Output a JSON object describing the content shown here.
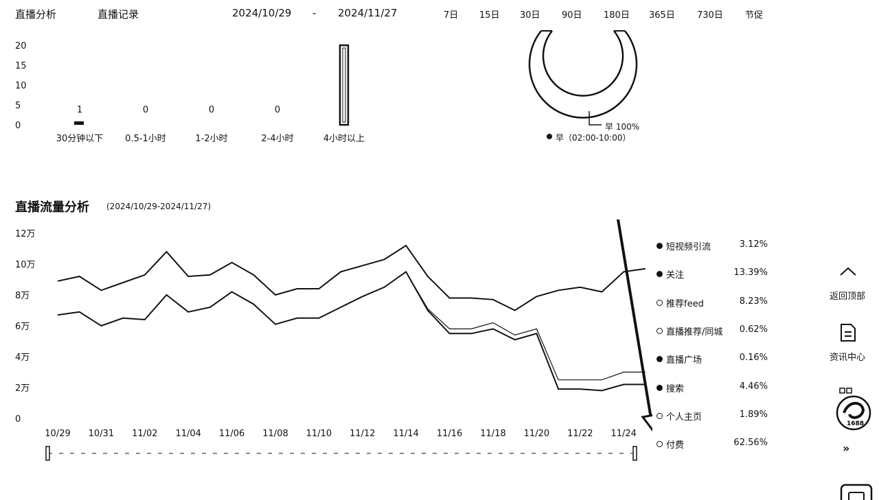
{
  "header": {
    "tab_analysis": "直播分析",
    "tab_records": "直播记录",
    "date_start": "2024/10/29",
    "date_sep": "-",
    "date_end": "2024/11/27",
    "ranges": [
      "7日",
      "15日",
      "30日",
      "90日",
      "180日",
      "365日",
      "730日",
      "节促"
    ]
  },
  "duration_chart": {
    "y_ticks": [
      "20",
      "15",
      "10",
      "5",
      "0"
    ],
    "bars": [
      {
        "label": "30分钟以下",
        "value": 1,
        "value_label": "1"
      },
      {
        "label": "0.5-1小时",
        "value": 0,
        "value_label": "0"
      },
      {
        "label": "1-2小时",
        "value": 0,
        "value_label": "0"
      },
      {
        "label": "2-4小时",
        "value": 0,
        "value_label": "0"
      },
      {
        "label": "4小时以上",
        "value": 20,
        "value_label": ""
      }
    ]
  },
  "time_chart": {
    "slice_label": "早 100%",
    "legend": "早（02:00-10:00）"
  },
  "traffic": {
    "title": "直播流量分析",
    "range": "(2024/10/29-2024/11/27)"
  },
  "chart_data": {
    "type": "line",
    "title": "直播流量分析",
    "ylim": [
      0,
      120000
    ],
    "y_ticks": [
      "12万",
      "10万",
      "8万",
      "6万",
      "4万",
      "2万",
      "0"
    ],
    "x_ticks": [
      "10/29",
      "10/31",
      "11/02",
      "11/04",
      "11/06",
      "11/08",
      "11/10",
      "11/12",
      "11/14",
      "11/16",
      "11/18",
      "11/20",
      "11/22",
      "11/24"
    ],
    "x": [
      "10/29",
      "10/30",
      "10/31",
      "11/01",
      "11/02",
      "11/03",
      "11/04",
      "11/05",
      "11/06",
      "11/07",
      "11/08",
      "11/09",
      "11/10",
      "11/11",
      "11/12",
      "11/13",
      "11/14",
      "11/15",
      "11/16",
      "11/17",
      "11/18",
      "11/19",
      "11/20",
      "11/21",
      "11/22",
      "11/23",
      "11/24",
      "11/25"
    ],
    "series": [
      {
        "values": [
          89000,
          92000,
          83000,
          88000,
          93000,
          108000,
          92000,
          93000,
          101000,
          93000,
          80000,
          84000,
          84000,
          95000,
          99000,
          103000,
          112000,
          92000,
          78000,
          78000,
          77000,
          70000,
          79000,
          83000,
          85000,
          82000,
          95000,
          97000
        ]
      },
      {
        "values": [
          67000,
          69000,
          60000,
          65000,
          64000,
          80000,
          69000,
          72000,
          82000,
          74000,
          61000,
          65000,
          65000,
          72000,
          79000,
          85000,
          95000,
          71000,
          58000,
          58000,
          62000,
          54000,
          58000,
          25000,
          25000,
          25000,
          30000,
          30000
        ]
      },
      {
        "values": [
          67000,
          69000,
          60000,
          65000,
          64000,
          80000,
          69000,
          72000,
          82000,
          74000,
          61000,
          65000,
          65000,
          72000,
          79000,
          85000,
          95000,
          70000,
          55000,
          55000,
          58000,
          51000,
          55000,
          19000,
          19000,
          18000,
          22000,
          22000
        ]
      }
    ]
  },
  "legend": [
    {
      "name": "短视频引流",
      "pct": "3.12%",
      "filled": true
    },
    {
      "name": "关注",
      "pct": "13.39%",
      "filled": true
    },
    {
      "name": "推荐feed",
      "pct": "8.23%",
      "filled": false
    },
    {
      "name": "直播推荐/同城",
      "pct": "0.62%",
      "filled": false
    },
    {
      "name": "直播广场",
      "pct": "0.16%",
      "filled": true
    },
    {
      "name": "搜索",
      "pct": "4.46%",
      "filled": true
    },
    {
      "name": "个人主页",
      "pct": "1.89%",
      "filled": false
    },
    {
      "name": "付费",
      "pct": "62.56%",
      "filled": false
    }
  ],
  "sidebar": {
    "back_top": "返回顶部",
    "news": "资讯中心",
    "more": "»",
    "logo_text": "1688"
  }
}
